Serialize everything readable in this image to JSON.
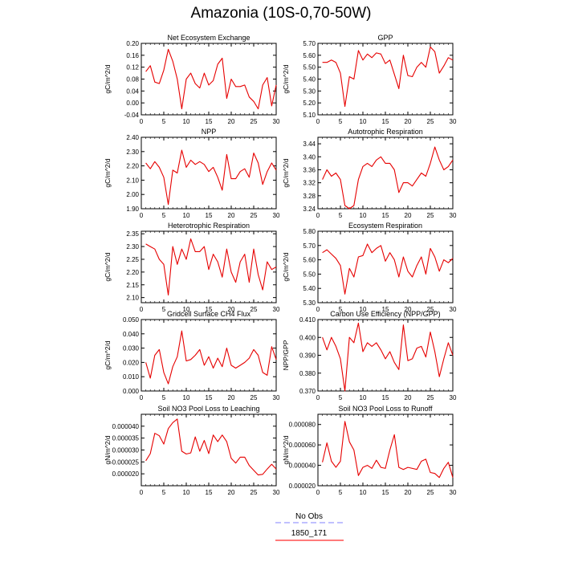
{
  "title": "Amazonia (10S-0,70-50W)",
  "legend": [
    {
      "label": "No Obs",
      "color": "#9a9aff",
      "dash": true
    },
    {
      "label": "1850_171",
      "color": "#ff2a2a",
      "dash": false
    }
  ],
  "colors": {
    "series": "#e60000"
  },
  "chart_data": [
    {
      "type": "line",
      "title": "Net Ecosystem Exchange",
      "ylabel": "gC/m^2/d",
      "xlim": [
        0,
        30
      ],
      "ylim": [
        -0.04,
        0.2
      ],
      "xticks": [
        "0",
        "5",
        "10",
        "15",
        "20",
        "25",
        "30"
      ],
      "yticks": [
        "-0.04",
        "0.00",
        "0.04",
        "0.08",
        "0.12",
        "0.16",
        "0.20"
      ],
      "x": [
        1,
        2,
        3,
        4,
        5,
        6,
        7,
        8,
        9,
        10,
        11,
        12,
        13,
        14,
        15,
        16,
        17,
        18,
        19,
        20,
        21,
        22,
        23,
        24,
        25,
        26,
        27,
        28,
        29,
        30
      ],
      "values": [
        0.105,
        0.125,
        0.07,
        0.065,
        0.11,
        0.18,
        0.14,
        0.08,
        -0.02,
        0.08,
        0.1,
        0.065,
        0.05,
        0.1,
        0.06,
        0.075,
        0.13,
        0.15,
        0.015,
        0.08,
        0.055,
        0.055,
        0.06,
        0.02,
        0.005,
        -0.02,
        0.06,
        0.085,
        -0.01,
        0.06
      ]
    },
    {
      "type": "line",
      "title": "GPP",
      "ylabel": "gC/m^2/d",
      "xlim": [
        0,
        30
      ],
      "ylim": [
        5.1,
        5.7
      ],
      "xticks": [
        "0",
        "5",
        "10",
        "15",
        "20",
        "25",
        "30"
      ],
      "yticks": [
        "5.10",
        "5.20",
        "5.30",
        "5.40",
        "5.50",
        "5.60",
        "5.70"
      ],
      "x": [
        1,
        2,
        3,
        4,
        5,
        6,
        7,
        8,
        9,
        10,
        11,
        12,
        13,
        14,
        15,
        16,
        17,
        18,
        19,
        20,
        21,
        22,
        23,
        24,
        25,
        26,
        27,
        28,
        29,
        30
      ],
      "values": [
        5.54,
        5.54,
        5.56,
        5.54,
        5.45,
        5.17,
        5.42,
        5.4,
        5.64,
        5.56,
        5.61,
        5.58,
        5.62,
        5.61,
        5.53,
        5.56,
        5.44,
        5.32,
        5.6,
        5.43,
        5.42,
        5.5,
        5.54,
        5.5,
        5.67,
        5.63,
        5.45,
        5.51,
        5.58,
        5.56
      ]
    },
    {
      "type": "line",
      "title": "NPP",
      "ylabel": "gC/m^2/d",
      "xlim": [
        0,
        30
      ],
      "ylim": [
        1.9,
        2.4
      ],
      "xticks": [
        "0",
        "5",
        "10",
        "15",
        "20",
        "25",
        "30"
      ],
      "yticks": [
        "1.90",
        "2.00",
        "2.10",
        "2.20",
        "2.30",
        "2.40"
      ],
      "x": [
        1,
        2,
        3,
        4,
        5,
        6,
        7,
        8,
        9,
        10,
        11,
        12,
        13,
        14,
        15,
        16,
        17,
        18,
        19,
        20,
        21,
        22,
        23,
        24,
        25,
        26,
        27,
        28,
        29,
        30
      ],
      "values": [
        2.22,
        2.18,
        2.23,
        2.19,
        2.12,
        1.93,
        2.17,
        2.15,
        2.31,
        2.19,
        2.24,
        2.21,
        2.23,
        2.21,
        2.16,
        2.19,
        2.12,
        2.03,
        2.28,
        2.11,
        2.11,
        2.16,
        2.18,
        2.12,
        2.29,
        2.22,
        2.07,
        2.16,
        2.22,
        2.17
      ]
    },
    {
      "type": "line",
      "title": "Autotrophic Respiration",
      "ylabel": "gC/m^2/d",
      "xlim": [
        0,
        30
      ],
      "ylim": [
        3.24,
        3.46
      ],
      "xticks": [
        "0",
        "5",
        "10",
        "15",
        "20",
        "25",
        "30"
      ],
      "yticks": [
        "3.24",
        "3.28",
        "3.32",
        "3.36",
        "3.40",
        "3.44"
      ],
      "x": [
        1,
        2,
        3,
        4,
        5,
        6,
        7,
        8,
        9,
        10,
        11,
        12,
        13,
        14,
        15,
        16,
        17,
        18,
        19,
        20,
        21,
        22,
        23,
        24,
        25,
        26,
        27,
        28,
        29,
        30
      ],
      "values": [
        3.33,
        3.36,
        3.34,
        3.35,
        3.33,
        3.25,
        3.24,
        3.25,
        3.33,
        3.37,
        3.38,
        3.37,
        3.39,
        3.4,
        3.38,
        3.38,
        3.36,
        3.29,
        3.32,
        3.32,
        3.31,
        3.33,
        3.35,
        3.34,
        3.38,
        3.43,
        3.39,
        3.36,
        3.37,
        3.39
      ]
    },
    {
      "type": "line",
      "title": "Heterotrophic Respiration",
      "ylabel": "gC/m^2/d",
      "xlim": [
        0,
        30
      ],
      "ylim": [
        2.08,
        2.36
      ],
      "xticks": [
        "0",
        "5",
        "10",
        "15",
        "20",
        "25",
        "30"
      ],
      "yticks": [
        "2.10",
        "2.15",
        "2.20",
        "2.25",
        "2.30",
        "2.35"
      ],
      "x": [
        1,
        2,
        3,
        4,
        5,
        6,
        7,
        8,
        9,
        10,
        11,
        12,
        13,
        14,
        15,
        16,
        17,
        18,
        19,
        20,
        21,
        22,
        23,
        24,
        25,
        26,
        27,
        28,
        29,
        30
      ],
      "values": [
        2.31,
        2.3,
        2.29,
        2.25,
        2.23,
        2.11,
        2.3,
        2.23,
        2.29,
        2.25,
        2.33,
        2.28,
        2.28,
        2.3,
        2.21,
        2.27,
        2.24,
        2.18,
        2.29,
        2.2,
        2.16,
        2.24,
        2.27,
        2.16,
        2.29,
        2.19,
        2.13,
        2.24,
        2.21,
        2.22
      ]
    },
    {
      "type": "line",
      "title": "Ecosystem Respiration",
      "ylabel": "gC/m^2/d",
      "xlim": [
        0,
        30
      ],
      "ylim": [
        5.3,
        5.8
      ],
      "xticks": [
        "0",
        "5",
        "10",
        "15",
        "20",
        "25",
        "30"
      ],
      "yticks": [
        "5.30",
        "5.40",
        "5.50",
        "5.60",
        "5.70",
        "5.80"
      ],
      "x": [
        1,
        2,
        3,
        4,
        5,
        6,
        7,
        8,
        9,
        10,
        11,
        12,
        13,
        14,
        15,
        16,
        17,
        18,
        19,
        20,
        21,
        22,
        23,
        24,
        25,
        26,
        27,
        28,
        29,
        30
      ],
      "values": [
        5.65,
        5.67,
        5.64,
        5.61,
        5.56,
        5.36,
        5.54,
        5.48,
        5.62,
        5.63,
        5.71,
        5.65,
        5.68,
        5.7,
        5.59,
        5.65,
        5.6,
        5.48,
        5.62,
        5.52,
        5.48,
        5.56,
        5.62,
        5.5,
        5.68,
        5.62,
        5.52,
        5.6,
        5.58,
        5.61
      ]
    },
    {
      "type": "line",
      "title": "Gridcell Surface CH4 Flux",
      "ylabel": "gC/m^2/d",
      "xlim": [
        0,
        30
      ],
      "ylim": [
        0.0,
        0.05
      ],
      "xticks": [
        "0",
        "5",
        "10",
        "15",
        "20",
        "25",
        "30"
      ],
      "yticks": [
        "0.000",
        "0.010",
        "0.020",
        "0.030",
        "0.040",
        "0.050"
      ],
      "x": [
        1,
        2,
        3,
        4,
        5,
        6,
        7,
        8,
        9,
        10,
        11,
        12,
        13,
        14,
        15,
        16,
        17,
        18,
        19,
        20,
        21,
        22,
        23,
        24,
        25,
        26,
        27,
        28,
        29,
        30
      ],
      "values": [
        0.02,
        0.009,
        0.025,
        0.029,
        0.013,
        0.005,
        0.017,
        0.024,
        0.042,
        0.021,
        0.022,
        0.025,
        0.029,
        0.018,
        0.024,
        0.016,
        0.023,
        0.017,
        0.03,
        0.018,
        0.016,
        0.018,
        0.02,
        0.023,
        0.029,
        0.025,
        0.013,
        0.011,
        0.031,
        0.022
      ]
    },
    {
      "type": "line",
      "title": "Carbon Use Efficiency (NPP/GPP)",
      "ylabel": "NPP/GPP",
      "xlim": [
        0,
        30
      ],
      "ylim": [
        0.37,
        0.41
      ],
      "xticks": [
        "0",
        "5",
        "10",
        "15",
        "20",
        "25",
        "30"
      ],
      "yticks": [
        "0.370",
        "0.380",
        "0.390",
        "0.400",
        "0.410"
      ],
      "x": [
        1,
        2,
        3,
        4,
        5,
        6,
        7,
        8,
        9,
        10,
        11,
        12,
        13,
        14,
        15,
        16,
        17,
        18,
        19,
        20,
        21,
        22,
        23,
        24,
        25,
        26,
        27,
        28,
        29,
        30
      ],
      "values": [
        0.4,
        0.393,
        0.4,
        0.395,
        0.388,
        0.37,
        0.4,
        0.397,
        0.408,
        0.392,
        0.397,
        0.395,
        0.397,
        0.393,
        0.388,
        0.392,
        0.386,
        0.382,
        0.407,
        0.387,
        0.388,
        0.394,
        0.395,
        0.389,
        0.403,
        0.392,
        0.378,
        0.388,
        0.397,
        0.39
      ]
    },
    {
      "type": "line",
      "title": "Soil NO3 Pool Loss to Leaching",
      "ylabel": "gN/m^2/d",
      "xlim": [
        0,
        30
      ],
      "ylim": [
        1.5e-05,
        4.5e-05
      ],
      "xticks": [
        "0",
        "5",
        "10",
        "15",
        "20",
        "25",
        "30"
      ],
      "yticks": [
        "0.000020",
        "0.000025",
        "0.000030",
        "0.000035",
        "0.000040"
      ],
      "x": [
        1,
        2,
        3,
        4,
        5,
        6,
        7,
        8,
        9,
        10,
        11,
        12,
        13,
        14,
        15,
        16,
        17,
        18,
        19,
        20,
        21,
        22,
        23,
        24,
        25,
        26,
        27,
        28,
        29,
        30
      ],
      "values": [
        2.55e-05,
        2.85e-05,
        3.7e-05,
        3.6e-05,
        3.25e-05,
        3.9e-05,
        4.15e-05,
        4.3e-05,
        2.95e-05,
        2.83e-05,
        2.88e-05,
        3.55e-05,
        2.95e-05,
        3.4e-05,
        2.85e-05,
        3.63e-05,
        3.35e-05,
        3.63e-05,
        3.35e-05,
        2.65e-05,
        2.45e-05,
        2.7e-05,
        2.7e-05,
        2.35e-05,
        2.15e-05,
        1.95e-05,
        1.98e-05,
        2.2e-05,
        2.4e-05,
        2.2e-05
      ]
    },
    {
      "type": "line",
      "title": "Soil NO3 Pool Loss to Runoff",
      "ylabel": "gN/m^2/d",
      "xlim": [
        0,
        30
      ],
      "ylim": [
        2e-05,
        9e-05
      ],
      "xticks": [
        "0",
        "5",
        "10",
        "15",
        "20",
        "25",
        "30"
      ],
      "yticks": [
        "0.000020",
        "0.000040",
        "0.000060",
        "0.000080"
      ],
      "x": [
        1,
        2,
        3,
        4,
        5,
        6,
        7,
        8,
        9,
        10,
        11,
        12,
        13,
        14,
        15,
        16,
        17,
        18,
        19,
        20,
        21,
        22,
        23,
        24,
        25,
        26,
        27,
        28,
        29,
        30
      ],
      "values": [
        4.3e-05,
        6.2e-05,
        4.4e-05,
        3.8e-05,
        4.4e-05,
        8.3e-05,
        6.3e-05,
        5.5e-05,
        3e-05,
        3.8e-05,
        4e-05,
        3.7e-05,
        4.5e-05,
        3.8e-05,
        3.7e-05,
        5.5e-05,
        7e-05,
        3.8e-05,
        3.6e-05,
        3.8e-05,
        3.7e-05,
        3.6e-05,
        4.4e-05,
        4.6e-05,
        3.3e-05,
        3.2e-05,
        2.8e-05,
        3.7e-05,
        4.3e-05,
        2.8e-05
      ]
    }
  ]
}
